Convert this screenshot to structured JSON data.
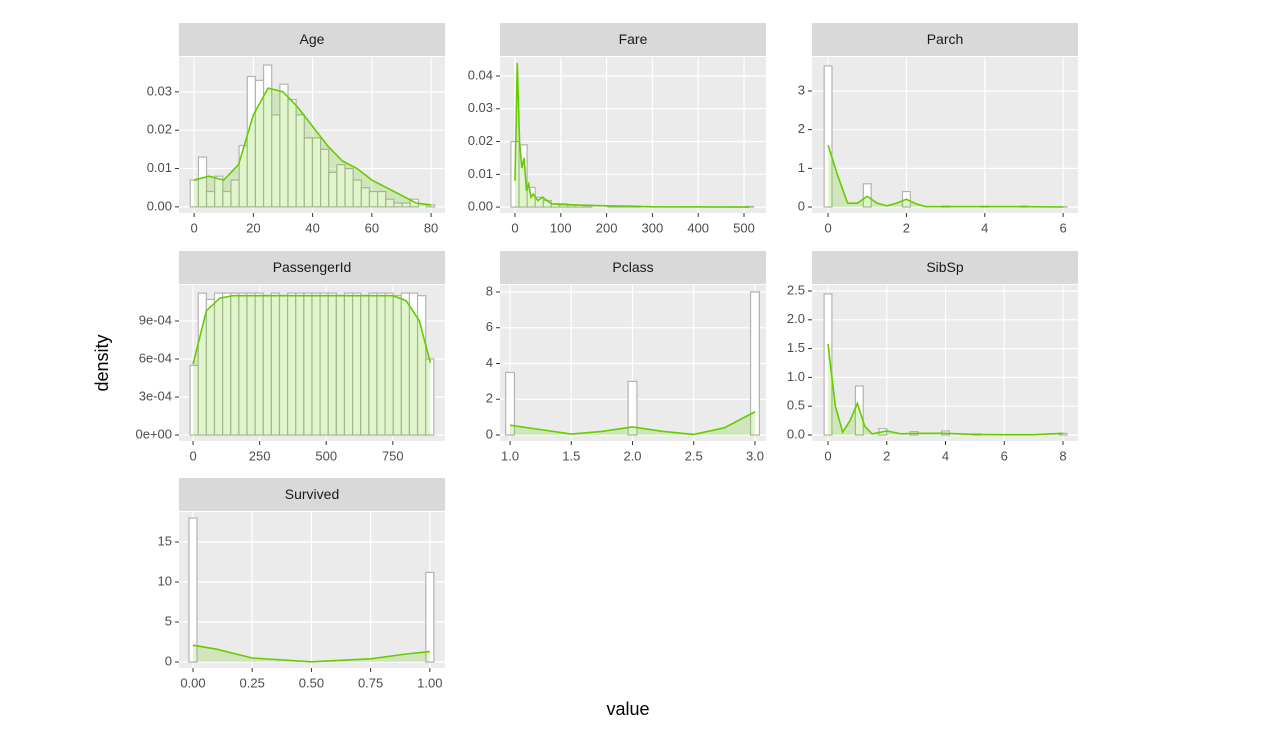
{
  "x_label": "value",
  "y_label": "density",
  "colors": {
    "panel": "#ebebeb",
    "strip": "#d9d9d9",
    "bar_fill": "#ffffff",
    "bar_edge": "#b3b3b3",
    "density": "#66cc00"
  },
  "chart_data": [
    {
      "type": "histogram",
      "title": "Age",
      "bins": [
        -1.3,
        1.45,
        4.2,
        6.95,
        9.7,
        12.45,
        15.2,
        17.95,
        20.7,
        23.45,
        26.2,
        28.95,
        31.7,
        34.45,
        37.2,
        39.95,
        42.7,
        45.45,
        48.2,
        50.95,
        53.7,
        56.45,
        59.2,
        61.95,
        64.7,
        67.45,
        70.2,
        72.95,
        75.7,
        78.45,
        81.2
      ],
      "values": [
        0.007,
        0.013,
        0.004,
        0.008,
        0.004,
        0.007,
        0.016,
        0.034,
        0.033,
        0.037,
        0.024,
        0.032,
        0.028,
        0.024,
        0.018,
        0.018,
        0.015,
        0.009,
        0.011,
        0.01,
        0.007,
        0.005,
        0.004,
        0.004,
        0.002,
        0.001,
        0.001,
        0.002,
        0,
        0.0005
      ],
      "density": {
        "x": [
          0,
          5,
          10,
          15,
          20,
          25,
          30,
          35,
          40,
          45,
          50,
          55,
          60,
          65,
          70,
          75,
          80
        ],
        "y": [
          0.007,
          0.008,
          0.007,
          0.011,
          0.024,
          0.031,
          0.03,
          0.026,
          0.021,
          0.016,
          0.012,
          0.01,
          0.007,
          0.005,
          0.003,
          0.001,
          0.0005
        ]
      },
      "xlim": [
        -5.1,
        84.7
      ],
      "ylim": [
        -0.0016,
        0.0391
      ],
      "xticks": [
        0,
        20,
        40,
        60,
        80
      ],
      "yticks": [
        {
          "value": 0,
          "label": "0.00"
        },
        0.01,
        0.02,
        0.03
      ]
    },
    {
      "type": "histogram",
      "title": "Fare",
      "bins": [
        -8.8,
        8.86,
        26.52,
        44.18,
        61.84,
        79.5,
        97.16,
        114.82,
        132.48,
        150.14,
        167.8,
        185.46,
        203.12,
        220.78,
        238.44,
        256.1,
        273.76,
        291.42,
        309.08,
        326.74,
        344.4,
        362.06,
        379.72,
        397.38,
        415.04,
        432.7,
        450.36,
        468.02,
        485.68,
        503.34,
        521.0
      ],
      "values": [
        0.02,
        0.019,
        0.006,
        0.003,
        0.002,
        0.001,
        0.001,
        0.0006,
        0.0006,
        0.0003,
        0,
        0,
        0.0002,
        0.0003,
        0.0002,
        0.0002,
        0,
        0,
        0,
        0,
        0,
        0,
        0,
        0,
        0,
        0,
        0,
        0,
        0,
        0.0002
      ],
      "density": {
        "x": [
          0,
          5,
          10,
          15,
          20,
          25,
          30,
          35,
          40,
          50,
          60,
          80,
          100,
          150,
          200,
          250,
          300,
          512
        ],
        "y": [
          0.008,
          0.044,
          0.02,
          0.012,
          0.015,
          0.005,
          0.007,
          0.003,
          0.004,
          0.002,
          0.003,
          0.001,
          0.0008,
          0.0006,
          0.0004,
          0.0003,
          0.0001,
          0
        ]
      },
      "xlim": [
        -32.7,
        548
      ],
      "ylim": [
        -0.0018,
        0.0458
      ],
      "xticks": [
        0,
        100,
        200,
        300,
        400,
        500
      ],
      "yticks": [
        {
          "value": 0,
          "label": "0.00"
        },
        0.01,
        0.02,
        0.03,
        0.04
      ]
    },
    {
      "type": "histogram",
      "title": "Parch",
      "bins": [
        -0.1,
        0.1,
        0.3,
        0.5,
        0.7,
        0.9,
        1.1,
        1.3,
        1.5,
        1.7,
        1.9,
        2.1,
        2.3,
        2.5,
        2.7,
        2.9,
        3.1,
        3.3,
        3.5,
        3.7,
        3.9,
        4.1,
        4.3,
        4.5,
        4.7,
        4.9,
        5.1,
        5.3,
        5.5,
        5.7,
        5.9,
        6.1
      ],
      "values": [
        3.65,
        0,
        0,
        0,
        0,
        0.6,
        0,
        0,
        0,
        0,
        0.4,
        0,
        0,
        0,
        0,
        0.025,
        0,
        0,
        0,
        0,
        0.02,
        0,
        0,
        0,
        0,
        0.025,
        0,
        0,
        0,
        0,
        0.005
      ],
      "density": {
        "x": [
          0,
          0.25,
          0.5,
          0.75,
          1,
          1.25,
          1.5,
          1.75,
          2,
          2.25,
          2.5,
          3,
          4,
          5,
          6
        ],
        "y": [
          1.6,
          0.8,
          0.1,
          0.1,
          0.28,
          0.1,
          0.03,
          0.1,
          0.2,
          0.08,
          0.01,
          0.01,
          0.01,
          0.01,
          0
        ]
      },
      "xlim": [
        -0.41,
        6.38
      ],
      "ylim": [
        -0.155,
        3.88
      ],
      "xticks": [
        0,
        2,
        4,
        6
      ],
      "yticks": [
        0,
        1,
        2,
        3
      ]
    },
    {
      "type": "histogram",
      "title": "PassengerId",
      "bins": [
        -11,
        19.5,
        50,
        80.5,
        111,
        141.5,
        172,
        202.5,
        233,
        263.5,
        294,
        324.5,
        355,
        385.5,
        416,
        446.5,
        477,
        507.5,
        538,
        568.5,
        599,
        629.5,
        660,
        690.5,
        721,
        751.5,
        782,
        812.5,
        843,
        873.5,
        904
      ],
      "values": [
        0.00055,
        0.00112,
        0.00107,
        0.00112,
        0.00112,
        0.00112,
        0.00112,
        0.00112,
        0.00112,
        0.0011,
        0.00112,
        0.0011,
        0.00112,
        0.00112,
        0.00112,
        0.00112,
        0.00112,
        0.00112,
        0.0011,
        0.00112,
        0.00112,
        0.0011,
        0.00112,
        0.00112,
        0.00112,
        0.0011,
        0.00112,
        0.00112,
        0.0011,
        0.0006
      ],
      "density": {
        "x": [
          0,
          50,
          100,
          150,
          200,
          250,
          300,
          350,
          400,
          450,
          500,
          550,
          600,
          650,
          700,
          750,
          800,
          850,
          891
        ],
        "y": [
          0.00056,
          0.00098,
          0.00108,
          0.0011,
          0.0011,
          0.0011,
          0.0011,
          0.0011,
          0.0011,
          0.0011,
          0.0011,
          0.0011,
          0.0011,
          0.0011,
          0.0011,
          0.0011,
          0.00106,
          0.0009,
          0.00057
        ]
      },
      "xlim": [
        -52.8,
        946
      ],
      "ylim": [
        -4.7e-05,
        0.001184
      ],
      "xticks": [
        0,
        250,
        500,
        750
      ],
      "yticks": [
        {
          "value": 0,
          "label": "0e+00"
        },
        {
          "value": 0.0003,
          "label": "3e-04"
        },
        {
          "value": 0.0006,
          "label": "6e-04"
        },
        {
          "value": 0.0009,
          "label": "9e-04"
        }
      ]
    },
    {
      "type": "histogram",
      "title": "Pclass",
      "bins": [
        0.964,
        1.036,
        1.107,
        1.179,
        1.25,
        1.321,
        1.393,
        1.464,
        1.536,
        1.607,
        1.679,
        1.75,
        1.821,
        1.893,
        1.964,
        2.036,
        2.107,
        2.179,
        2.25,
        2.321,
        2.393,
        2.464,
        2.536,
        2.607,
        2.679,
        2.75,
        2.821,
        2.893,
        2.964,
        3.036
      ],
      "values": [
        3.5,
        0,
        0,
        0,
        0,
        0,
        0,
        0,
        0,
        0,
        0,
        0,
        0,
        0,
        3.0,
        0,
        0,
        0,
        0,
        0,
        0,
        0,
        0,
        0,
        0,
        0,
        0,
        0,
        8.0
      ],
      "density": {
        "x": [
          1,
          1.25,
          1.5,
          1.75,
          2,
          2.25,
          2.5,
          2.75,
          3
        ],
        "y": [
          0.55,
          0.3,
          0.05,
          0.2,
          0.45,
          0.2,
          0.03,
          0.4,
          1.3
        ]
      },
      "xlim": [
        0.918,
        3.09
      ],
      "ylim": [
        -0.336,
        8.39
      ],
      "xticks": [
        {
          "value": 1,
          "label": "1.0"
        },
        1.5,
        {
          "value": 2,
          "label": "2.0"
        },
        2.5,
        {
          "value": 3,
          "label": "3.0"
        }
      ],
      "yticks": [
        0,
        2,
        4,
        6,
        8
      ]
    },
    {
      "type": "histogram",
      "title": "SibSp",
      "bins": [
        -0.133,
        0.133,
        0.4,
        0.667,
        0.933,
        1.2,
        1.467,
        1.733,
        2.0,
        2.267,
        2.533,
        2.8,
        3.067,
        3.333,
        3.6,
        3.867,
        4.133,
        4.4,
        4.667,
        4.933,
        5.2,
        5.467,
        5.733,
        6.0,
        6.267,
        6.533,
        6.8,
        7.067,
        7.333,
        7.6,
        7.867,
        8.133
      ],
      "values": [
        2.45,
        0,
        0,
        0,
        0.85,
        0,
        0,
        0.11,
        0,
        0,
        0,
        0.06,
        0,
        0,
        0,
        0.07,
        0,
        0,
        0,
        0.02,
        0,
        0,
        0,
        0,
        0,
        0,
        0,
        0,
        0,
        0,
        0.028
      ],
      "density": {
        "x": [
          0,
          0.25,
          0.5,
          0.75,
          1,
          1.25,
          1.5,
          2,
          2.5,
          3,
          4,
          5,
          6,
          7,
          8
        ],
        "y": [
          1.58,
          0.5,
          0.05,
          0.25,
          0.55,
          0.15,
          0.02,
          0.07,
          0.02,
          0.03,
          0.03,
          0.01,
          0.005,
          0.005,
          0.03
        ]
      },
      "xlim": [
        -0.545,
        8.51
      ],
      "ylim": [
        -0.104,
        2.604
      ],
      "xticks": [
        0,
        2,
        4,
        6,
        8
      ],
      "yticks": [
        {
          "value": 0,
          "label": "0.0"
        },
        0.5,
        {
          "value": 1,
          "label": "1.0"
        },
        1.5,
        {
          "value": 2,
          "label": "2.0"
        },
        2.5
      ]
    },
    {
      "type": "histogram",
      "title": "Survived",
      "bins": [
        -0.017,
        0.017,
        0.052,
        0.086,
        0.121,
        0.155,
        0.19,
        0.224,
        0.259,
        0.293,
        0.328,
        0.362,
        0.397,
        0.431,
        0.466,
        0.5,
        0.534,
        0.569,
        0.603,
        0.638,
        0.672,
        0.707,
        0.741,
        0.776,
        0.81,
        0.845,
        0.879,
        0.914,
        0.948,
        0.983,
        1.017
      ],
      "values": [
        18.0,
        0,
        0,
        0,
        0,
        0,
        0,
        0,
        0,
        0,
        0,
        0,
        0,
        0,
        0,
        0,
        0,
        0,
        0,
        0,
        0,
        0,
        0,
        0,
        0,
        0,
        0,
        0,
        0,
        11.2
      ],
      "density": {
        "x": [
          0,
          0.1,
          0.25,
          0.5,
          0.75,
          0.9,
          1
        ],
        "y": [
          2.1,
          1.6,
          0.5,
          0.02,
          0.4,
          1.0,
          1.3
        ]
      },
      "xlim": [
        -0.059,
        1.064
      ],
      "ylim": [
        -0.75,
        18.75
      ],
      "xticks": [
        {
          "value": 0,
          "label": "0.00"
        },
        0.25,
        {
          "value": 0.5,
          "label": "0.50"
        },
        0.75,
        {
          "value": 1,
          "label": "1.00"
        }
      ],
      "yticks": [
        0,
        5,
        10,
        15
      ]
    }
  ]
}
